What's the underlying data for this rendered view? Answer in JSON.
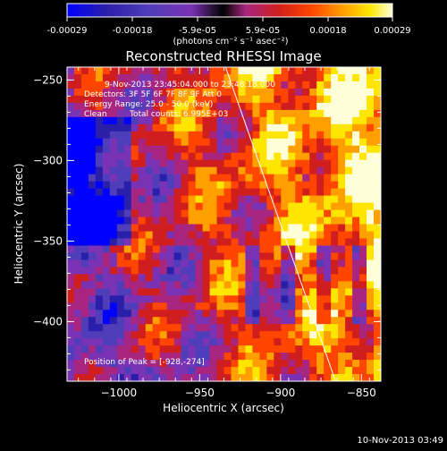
{
  "window": {
    "footer_timestamp": "10-Nov-2013 03:49"
  },
  "colorbar": {
    "tick_labels": [
      "-0.00029",
      "-0.00018",
      "-5.9e-05",
      "5.9e-05",
      "0.00018",
      "0.00029"
    ],
    "units_label": "(photons cm⁻² s⁻¹ asec⁻²)",
    "range": [
      -0.00029,
      0.00029
    ]
  },
  "annotations": {
    "time_range": "9-Nov-2013 23:45:04.000 to 23:48:18.000",
    "detectors": "Detectors: 3F 5F 6F 7F 8F 9F  Att 0",
    "energy_range": "Energy Range: 25.0 - 50.0 (keV)",
    "algorithm": "Clean",
    "total_counts": "Total counts: 6.995E+03",
    "peak": "Position of Peak = [-928,-274]"
  },
  "chart_data": {
    "type": "heatmap",
    "title": "Reconstructed RHESSI Image",
    "xlabel": "Heliocentric X (arcsec)",
    "ylabel": "Heliocentric Y (arcsec)",
    "xlim": [
      -1032,
      -838
    ],
    "ylim": [
      -437,
      -242
    ],
    "xticks": [
      -1000,
      -950,
      -900,
      -850
    ],
    "yticks": [
      -250,
      -300,
      -350,
      -400
    ],
    "xtick_labels": [
      "−1000",
      "−950",
      "−900",
      "−850"
    ],
    "ytick_labels": [
      "−250",
      "−300",
      "−350",
      "−400"
    ],
    "peak_position": [
      -928,
      -274
    ],
    "limb_line": {
      "from": [
        -934,
        -242
      ],
      "to": [
        -866,
        -437
      ]
    },
    "colormap": [
      "#0000ff",
      "#2a1fa8",
      "#4f3dba",
      "#7a33b5",
      "#a8267f",
      "#d01e1e",
      "#ff4500",
      "#ff9f00",
      "#ffe600",
      "#ffffd8"
    ]
  }
}
